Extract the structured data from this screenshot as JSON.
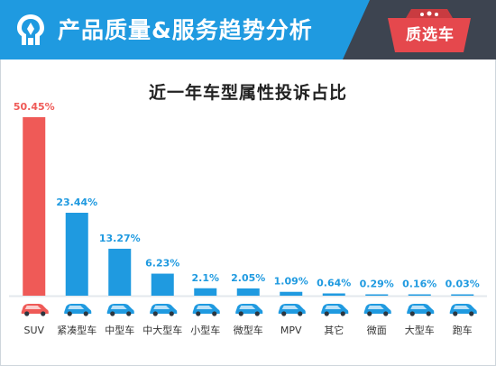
{
  "header": {
    "title": "产品质量&服务趋势分析",
    "badge": "质选车",
    "colors": {
      "bar_blue": "#1f9ae0",
      "dark": "#3d4450",
      "badge_red": "#e5484d"
    }
  },
  "chart_data": {
    "type": "bar",
    "title": "近一年车型属性投诉占比",
    "categories": [
      "SUV",
      "紧凑型车",
      "中型车",
      "中大型车",
      "小型车",
      "微型车",
      "MPV",
      "其它",
      "微面",
      "大型车",
      "跑车"
    ],
    "values": [
      50.45,
      23.44,
      13.27,
      6.23,
      2.1,
      2.05,
      1.09,
      0.64,
      0.29,
      0.16,
      0.03
    ],
    "value_labels": [
      "50.45%",
      "23.44%",
      "13.27%",
      "6.23%",
      "2.1%",
      "2.05%",
      "1.09%",
      "0.64%",
      "0.29%",
      "0.16%",
      "0.03%"
    ],
    "ylim": [
      0,
      50.45
    ],
    "highlight_color": "#ef5a57",
    "bar_color": "#1f9ae0",
    "grid": false,
    "legend": "none"
  }
}
